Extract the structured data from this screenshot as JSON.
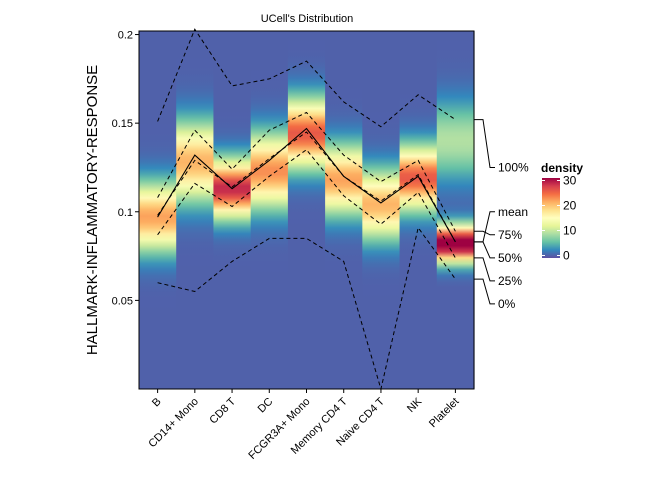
{
  "chart_data": {
    "type": "density-heatmap",
    "title": "UCell's Distribution",
    "xlabel": "",
    "ylabel": "HALLMARK-INFLAMMATORY-RESPONSE",
    "ylim": [
      0,
      0.202
    ],
    "yticks": [
      0.05,
      0.1,
      0.15,
      0.2
    ],
    "ytick_labels": [
      "0.05",
      "0.1",
      "0.15",
      "0.2"
    ],
    "categories": [
      "B",
      "CD14+ Mono",
      "CD8 T",
      "DC",
      "FCGR3A+ Mono",
      "Memory CD4 T",
      "Naive CD4 T",
      "NK",
      "Platelet"
    ],
    "density_profiles": [
      {
        "category": "B",
        "mode": 0.097,
        "sd": 0.013,
        "peak": 22
      },
      {
        "category": "CD14+ Mono",
        "mode": 0.128,
        "sd": 0.015,
        "peak": 21
      },
      {
        "category": "CD8 T",
        "mode": 0.113,
        "sd": 0.011,
        "peak": 29
      },
      {
        "category": "DC",
        "mode": 0.123,
        "sd": 0.014,
        "peak": 23
      },
      {
        "category": "FCGR3A+ Mono",
        "mode": 0.144,
        "sd": 0.013,
        "peak": 26
      },
      {
        "category": "Memory CD4 T",
        "mode": 0.118,
        "sd": 0.013,
        "peak": 22
      },
      {
        "category": "Naive CD4 T",
        "mode": 0.104,
        "sd": 0.013,
        "peak": 21
      },
      {
        "category": "NK",
        "mode": 0.119,
        "sd": 0.012,
        "peak": 26
      },
      {
        "category": "Platelet",
        "mode": 0.082,
        "sd": 0.007,
        "peak": 35,
        "bg_mode": 0.14,
        "bg_sd": 0.015,
        "bg_peak": 9,
        "floor": 0.058
      }
    ],
    "series": [
      {
        "name": "100%",
        "values": [
          0.151,
          0.203,
          0.171,
          0.175,
          0.185,
          0.162,
          0.148,
          0.166,
          0.152
        ]
      },
      {
        "name": "75%",
        "values": [
          0.108,
          0.146,
          0.124,
          0.146,
          0.156,
          0.132,
          0.117,
          0.129,
          0.089
        ]
      },
      {
        "name": "mean",
        "values": [
          0.097,
          0.132,
          0.113,
          0.129,
          0.147,
          0.12,
          0.105,
          0.12,
          0.083
        ]
      },
      {
        "name": "50%",
        "values": [
          0.098,
          0.129,
          0.114,
          0.13,
          0.145,
          0.12,
          0.106,
          0.121,
          0.083
        ]
      },
      {
        "name": "25%",
        "values": [
          0.087,
          0.116,
          0.103,
          0.12,
          0.135,
          0.109,
          0.093,
          0.111,
          0.074
        ]
      },
      {
        "name": "0%",
        "values": [
          0.06,
          0.055,
          0.072,
          0.085,
          0.085,
          0.072,
          0.0,
          0.091,
          0.062
        ]
      }
    ],
    "right_labels": [
      {
        "label": "100%",
        "value": 0.125
      },
      {
        "label": "mean",
        "value": 0.1
      },
      {
        "label": "75%",
        "value": 0.087
      },
      {
        "label": "50%",
        "value": 0.074
      },
      {
        "label": "25%",
        "value": 0.061
      },
      {
        "label": "0%",
        "value": 0.048
      }
    ],
    "legend": {
      "title": "density",
      "min": -1,
      "max": 31,
      "ticks": [
        0,
        10,
        20,
        30
      ],
      "tick_labels": [
        "0",
        "10",
        "20",
        "30"
      ],
      "position": "right"
    },
    "colormap": [
      "#5e4fa2",
      "#3288bd",
      "#66c2a5",
      "#abdda4",
      "#e6f598",
      "#ffffbf",
      "#fee08b",
      "#fdae61",
      "#f46d43",
      "#d53e4f",
      "#9e0142"
    ],
    "grid": false
  }
}
